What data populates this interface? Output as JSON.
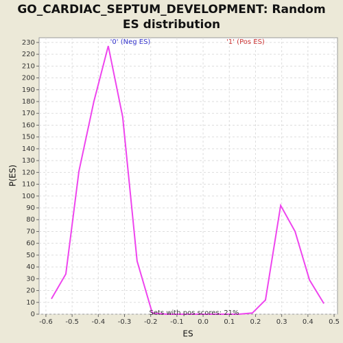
{
  "chart_data": {
    "type": "line",
    "title": "GO_CARDIAC_SEPTUM_DEVELOPMENT: Random ES distribution",
    "x_label": "ES",
    "y_label": "P(ES)",
    "series": [
      {
        "color": "#ee44ee",
        "x": [
          -0.579,
          -0.524,
          -0.474,
          -0.417,
          -0.362,
          -0.307,
          -0.252,
          -0.194,
          -0.139,
          -0.084,
          -0.029,
          0.026,
          0.081,
          0.136,
          0.188,
          0.238,
          0.296,
          0.351,
          0.406,
          0.461
        ],
        "values": [
          13,
          34,
          121,
          180,
          227,
          167,
          45,
          1,
          0,
          0,
          0,
          0,
          0,
          0,
          1,
          12,
          92,
          70,
          29,
          9
        ]
      }
    ],
    "annotations": [
      {
        "text": "'0' (Neg ES)",
        "color": "#3333cc"
      },
      {
        "text": "'1' (Pos ES)",
        "color": "#cc3333"
      },
      {
        "text": "Sets with pos scores: 21%",
        "color": "#333333"
      }
    ],
    "xlim": [
      -0.626,
      0.513
    ],
    "ylim": [
      0,
      234
    ],
    "xticks": [
      -0.6,
      -0.5,
      -0.4,
      -0.3,
      -0.2,
      -0.1,
      {
        "value": 0,
        "label": "0.0"
      },
      0.1,
      0.2,
      0.3,
      0.4,
      0.5
    ],
    "yticks": [
      0,
      10,
      20,
      30,
      40,
      50,
      60,
      70,
      80,
      90,
      100,
      110,
      120,
      130,
      140,
      150,
      160,
      170,
      180,
      190,
      200,
      210,
      220,
      230
    ],
    "grid": true
  }
}
